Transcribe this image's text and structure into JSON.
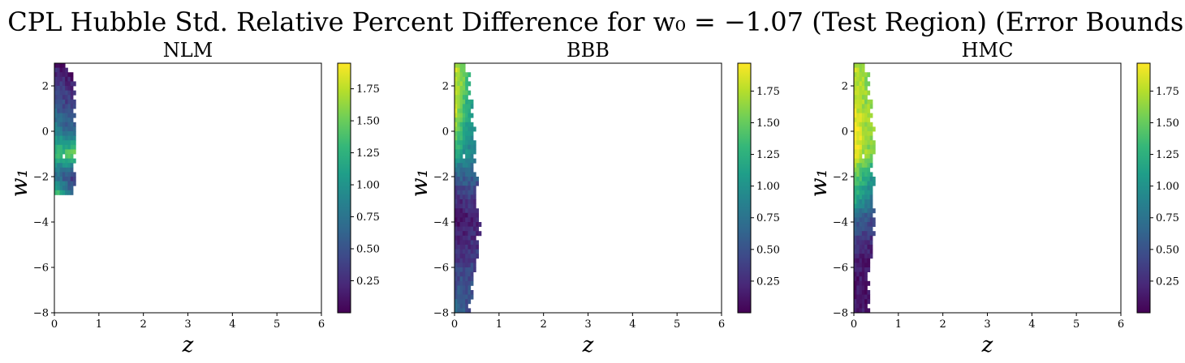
{
  "figure": {
    "title": "CPL Hubble Std. Relative Percent Difference for w₀ = −1.07 (Test Region) (Error Bounds)"
  },
  "colors": {
    "viridis": [
      "#440154",
      "#482878",
      "#3e4989",
      "#31688e",
      "#26828e",
      "#1f9e89",
      "#35b779",
      "#6ece58",
      "#b5de2b",
      "#fde725"
    ]
  },
  "chart_data": [
    {
      "type": "heatmap",
      "title": "NLM",
      "xlabel": "z",
      "ylabel": "w₁",
      "xlim": [
        0,
        6
      ],
      "ylim": [
        -8,
        3
      ],
      "xticks": [
        "0",
        "1",
        "2",
        "3",
        "4",
        "5",
        "6"
      ],
      "yticks": [
        "−8",
        "−6",
        "−4",
        "−2",
        "0",
        "2"
      ],
      "colorbar": {
        "range": [
          0.0,
          1.95
        ],
        "ticks": [
          "0.25",
          "0.50",
          "0.75",
          "1.00",
          "1.25",
          "1.50",
          "1.75"
        ]
      },
      "grid": false,
      "profile": {
        "w1": [
          3,
          2,
          1,
          0,
          -1,
          -2,
          -2.8
        ],
        "zmax": [
          0.25,
          0.42,
          0.42,
          0.42,
          0.42,
          0.42,
          0.4
        ],
        "value_inner": [
          0.15,
          0.35,
          0.6,
          0.85,
          1.3,
          0.7,
          1.5
        ],
        "value_outer": [
          0.05,
          0.2,
          0.35,
          0.6,
          1.5,
          0.3,
          0.5
        ]
      }
    },
    {
      "type": "heatmap",
      "title": "BBB",
      "xlabel": "z",
      "ylabel": "w₁",
      "xlim": [
        0,
        6
      ],
      "ylim": [
        -8,
        3
      ],
      "xticks": [
        "0",
        "1",
        "2",
        "3",
        "4",
        "5",
        "6"
      ],
      "yticks": [
        "−8",
        "−6",
        "−4",
        "−2",
        "0",
        "2"
      ],
      "colorbar": {
        "range": [
          0.0,
          1.97
        ],
        "ticks": [
          "0.25",
          "0.50",
          "0.75",
          "1.00",
          "1.25",
          "1.50",
          "1.75"
        ]
      },
      "grid": false,
      "profile": {
        "w1": [
          3,
          2,
          1,
          0,
          -1,
          -2,
          -3,
          -4,
          -5,
          -6,
          -7,
          -8
        ],
        "zmax": [
          0.25,
          0.3,
          0.35,
          0.4,
          0.4,
          0.45,
          0.5,
          0.52,
          0.5,
          0.48,
          0.35,
          0.3
        ],
        "value_inner": [
          1.8,
          1.75,
          1.8,
          1.5,
          1.2,
          0.6,
          0.25,
          0.1,
          0.2,
          0.4,
          0.5,
          0.8
        ],
        "value_outer": [
          1.5,
          1.3,
          1.0,
          0.9,
          0.8,
          0.6,
          0.35,
          0.2,
          0.3,
          0.4,
          0.5,
          0.4
        ]
      }
    },
    {
      "type": "heatmap",
      "title": "HMC",
      "xlabel": "z",
      "ylabel": "w₁",
      "xlim": [
        0,
        6
      ],
      "ylim": [
        -8,
        3
      ],
      "xticks": [
        "0",
        "1",
        "2",
        "3",
        "4",
        "5",
        "6"
      ],
      "yticks": [
        "−8",
        "−6",
        "−4",
        "−2",
        "0",
        "2"
      ],
      "colorbar": {
        "range": [
          0.0,
          1.97
        ],
        "ticks": [
          "0.25",
          "0.50",
          "0.75",
          "1.00",
          "1.25",
          "1.50",
          "1.75"
        ]
      },
      "grid": false,
      "profile": {
        "w1": [
          3,
          2,
          1,
          0,
          -1,
          -2,
          -3,
          -4,
          -5,
          -6,
          -7,
          -8
        ],
        "zmax": [
          0.25,
          0.3,
          0.35,
          0.4,
          0.4,
          0.4,
          0.42,
          0.42,
          0.4,
          0.35,
          0.3,
          0.28
        ],
        "value_inner": [
          1.8,
          1.75,
          1.85,
          1.95,
          1.9,
          1.5,
          1.2,
          0.6,
          0.3,
          0.15,
          0.1,
          0.2
        ],
        "value_outer": [
          1.7,
          1.6,
          1.6,
          1.6,
          1.5,
          1.0,
          0.7,
          0.4,
          0.2,
          0.1,
          0.1,
          0.1
        ]
      }
    }
  ]
}
